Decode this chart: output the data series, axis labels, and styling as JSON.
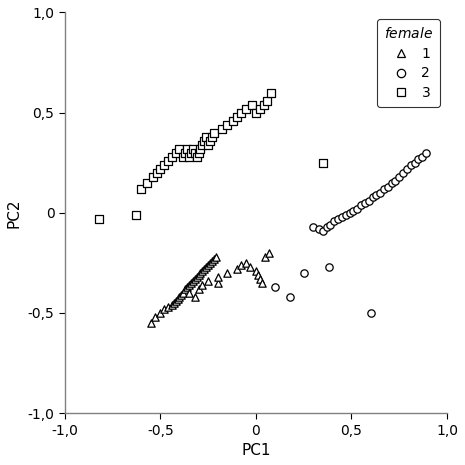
{
  "title": "",
  "xlabel": "PC1",
  "ylabel": "PC2",
  "xlim": [
    -1.0,
    1.0
  ],
  "ylim": [
    -1.0,
    1.0
  ],
  "xticks": [
    -1.0,
    -0.5,
    0.0,
    0.5,
    1.0
  ],
  "yticks": [
    -1.0,
    -0.5,
    0.0,
    0.5,
    1.0
  ],
  "xtick_labels": [
    "-1,0",
    "-0,5",
    "0",
    "0,5",
    "1,0"
  ],
  "ytick_labels": [
    "-1,0",
    "-0,5",
    "0",
    "0,5",
    "1,0"
  ],
  "legend_title": "female",
  "background_color": "#ffffff",
  "g1_x": [
    -0.55,
    -0.53,
    -0.5,
    -0.48,
    -0.46,
    -0.44,
    -0.43,
    -0.42,
    -0.41,
    -0.4,
    -0.39,
    -0.38,
    -0.37,
    -0.36,
    -0.35,
    -0.34,
    -0.33,
    -0.32,
    -0.31,
    -0.3,
    -0.29,
    -0.28,
    -0.27,
    -0.26,
    -0.25,
    -0.24,
    -0.23,
    -0.22,
    -0.21,
    -0.2,
    -0.35,
    -0.32,
    -0.3,
    -0.28,
    -0.25,
    -0.2,
    -0.15,
    -0.1,
    -0.08,
    -0.05,
    -0.03,
    0.0,
    0.01,
    0.02,
    0.03,
    0.05,
    0.07
  ],
  "g1_y": [
    -0.55,
    -0.52,
    -0.5,
    -0.48,
    -0.47,
    -0.46,
    -0.45,
    -0.44,
    -0.43,
    -0.42,
    -0.41,
    -0.4,
    -0.38,
    -0.37,
    -0.36,
    -0.35,
    -0.34,
    -0.33,
    -0.32,
    -0.31,
    -0.3,
    -0.29,
    -0.28,
    -0.27,
    -0.26,
    -0.25,
    -0.24,
    -0.23,
    -0.22,
    -0.35,
    -0.4,
    -0.42,
    -0.38,
    -0.36,
    -0.34,
    -0.32,
    -0.3,
    -0.28,
    -0.26,
    -0.25,
    -0.27,
    -0.29,
    -0.31,
    -0.33,
    -0.35,
    -0.22,
    -0.2
  ],
  "g2_x": [
    0.3,
    0.33,
    0.35,
    0.37,
    0.39,
    0.41,
    0.43,
    0.45,
    0.47,
    0.49,
    0.51,
    0.53,
    0.55,
    0.57,
    0.59,
    0.61,
    0.63,
    0.65,
    0.67,
    0.69,
    0.71,
    0.73,
    0.75,
    0.77,
    0.79,
    0.81,
    0.83,
    0.85,
    0.87,
    0.89,
    0.1,
    0.18,
    0.25,
    0.38,
    0.6
  ],
  "g2_y": [
    -0.07,
    -0.08,
    -0.09,
    -0.07,
    -0.06,
    -0.04,
    -0.03,
    -0.02,
    -0.01,
    0.0,
    0.01,
    0.02,
    0.04,
    0.05,
    0.06,
    0.08,
    0.09,
    0.1,
    0.12,
    0.13,
    0.15,
    0.16,
    0.18,
    0.2,
    0.22,
    0.24,
    0.25,
    0.27,
    0.28,
    0.3,
    -0.37,
    -0.42,
    -0.3,
    -0.27,
    -0.5
  ],
  "g3_x": [
    -0.82,
    -0.63,
    -0.6,
    -0.57,
    -0.54,
    -0.52,
    -0.5,
    -0.48,
    -0.46,
    -0.44,
    -0.42,
    -0.4,
    -0.38,
    -0.37,
    -0.36,
    -0.35,
    -0.34,
    -0.33,
    -0.32,
    -0.31,
    -0.3,
    -0.29,
    -0.28,
    -0.27,
    -0.26,
    -0.25,
    -0.24,
    -0.23,
    -0.22,
    -0.18,
    -0.15,
    -0.12,
    -0.1,
    -0.08,
    -0.05,
    -0.02,
    0.0,
    0.02,
    0.04,
    0.06,
    0.08,
    0.35
  ],
  "g3_y": [
    -0.03,
    -0.01,
    0.12,
    0.15,
    0.18,
    0.2,
    0.22,
    0.24,
    0.26,
    0.28,
    0.3,
    0.32,
    0.28,
    0.3,
    0.32,
    0.28,
    0.3,
    0.32,
    0.3,
    0.28,
    0.3,
    0.32,
    0.34,
    0.36,
    0.38,
    0.34,
    0.36,
    0.38,
    0.4,
    0.42,
    0.44,
    0.46,
    0.48,
    0.5,
    0.52,
    0.54,
    0.5,
    0.52,
    0.54,
    0.56,
    0.6,
    0.25
  ]
}
